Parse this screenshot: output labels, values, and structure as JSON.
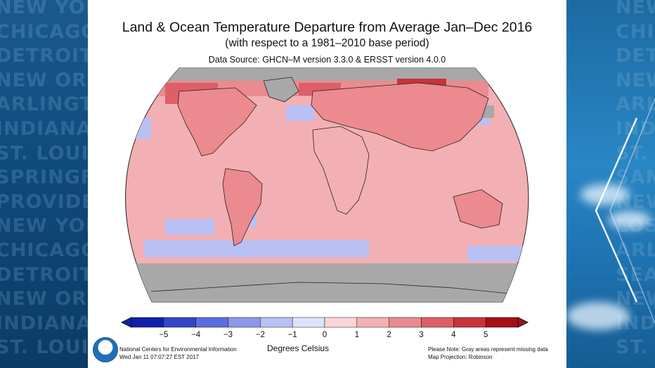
{
  "side_cities": [
    "NEW YORK",
    "CHICAGO",
    "DETROIT",
    "NEW ORLEANS",
    "ARLINGTON",
    "INDIANAPOLIS",
    "ST. LOUIS",
    "SPRINGFIELD",
    "PROVIDENCE",
    "NEW YORK",
    "CHICAGO",
    "DETROIT",
    "NEW ORLEANS",
    "INDIANAPOLIS",
    "ST. LOUIS"
  ],
  "side_cities_right": [
    "NEW YORK",
    "CHICAGO",
    "DETROIT",
    "NEW ORLEANS",
    "ARLINGTON",
    "INDIANAPOLIS",
    "ST. LOUIS",
    "SAN",
    "NEW ORLEANS",
    "LOS ANGELES",
    "ARLINGTON",
    "SEATTLE",
    "NEW ORLEANS",
    "INDIANAPOLIS",
    "ST. LOUIS"
  ],
  "map": {
    "title": "Land & Ocean Temperature Departure from Average Jan–Dec 2016",
    "subtitle": "(with respect to a 1981–2010 base period)",
    "source": "Data Source: GHCN–M version 3.3.0 & ERSST version 4.0.0",
    "missing_data_color": "#a8a8a8",
    "base_color": "#f3b0b4"
  },
  "legend": {
    "ticks": [
      "−5",
      "−4",
      "−3",
      "−2",
      "−1",
      "0",
      "1",
      "2",
      "3",
      "4",
      "5"
    ],
    "colors": [
      "#1020a8",
      "#3346c8",
      "#5b6ee0",
      "#8a97ea",
      "#b8c0f4",
      "#dde3fb",
      "#fbd6d8",
      "#f3b0b4",
      "#eb8a8f",
      "#de5f66",
      "#c8333a",
      "#a50f15"
    ],
    "unit": "Degrees Celsius"
  },
  "footer": {
    "org": "National Centers for Environmental Information",
    "timestamp": "Wed Jan 11 07:07:27 EST 2017",
    "note": "Please Note: Gray areas represent missing data",
    "projection": "Map Projection: Robinson"
  }
}
